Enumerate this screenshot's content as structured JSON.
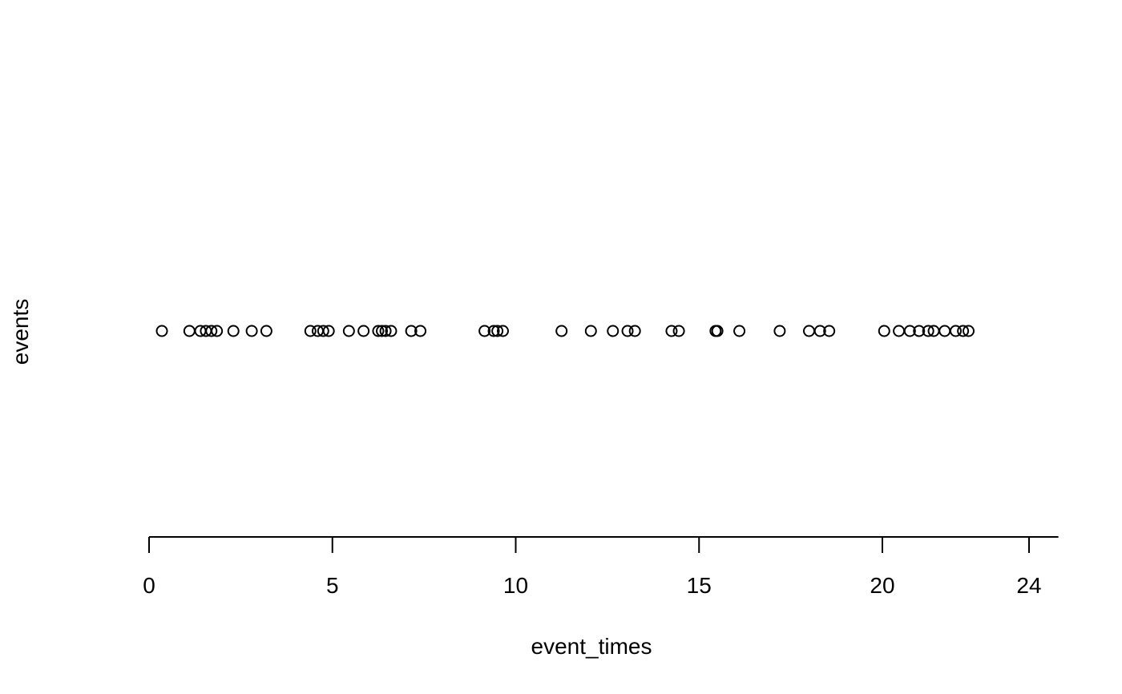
{
  "chart_data": {
    "type": "scatter",
    "title": "",
    "xlabel": "event_times",
    "ylabel": "events",
    "xlim": [
      0,
      24.8
    ],
    "xticks": [
      0,
      5,
      10,
      15,
      20,
      24
    ],
    "xtick_labels": [
      "0",
      "5",
      "10",
      "15",
      "20",
      "24"
    ],
    "y_value": 1,
    "grid": false,
    "marker": "open-circle",
    "marker_color": "#000000",
    "x": [
      0.35,
      1.1,
      1.4,
      1.55,
      1.7,
      1.85,
      2.3,
      2.8,
      3.2,
      4.4,
      4.6,
      4.75,
      4.9,
      5.45,
      5.85,
      6.25,
      6.35,
      6.45,
      6.6,
      7.15,
      7.4,
      9.15,
      9.4,
      9.5,
      9.65,
      11.25,
      12.05,
      12.65,
      13.05,
      13.25,
      14.25,
      14.45,
      15.45,
      15.5,
      16.1,
      17.2,
      18.0,
      18.3,
      18.55,
      20.05,
      20.45,
      20.75,
      21.0,
      21.25,
      21.4,
      21.7,
      22.0,
      22.2,
      22.35
    ]
  }
}
